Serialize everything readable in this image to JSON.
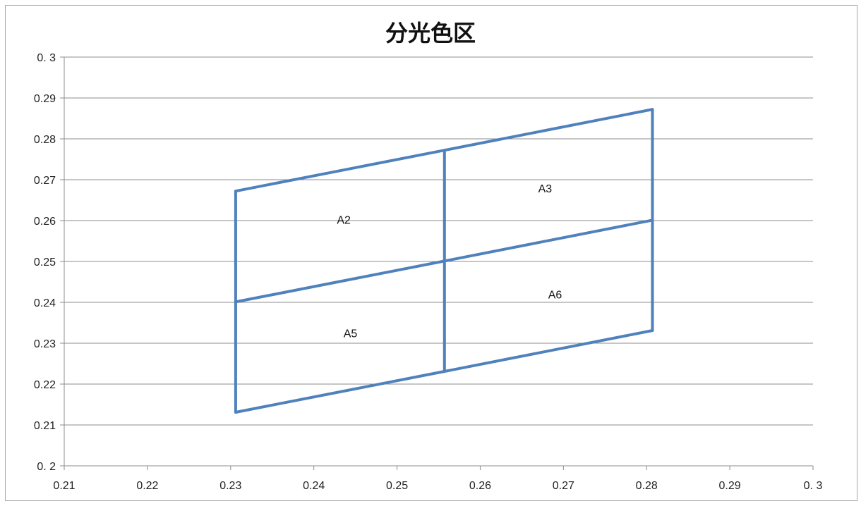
{
  "chart_data": {
    "type": "line",
    "title": "分光色区",
    "xlabel": "",
    "ylabel": "",
    "xlim": [
      0.21,
      0.3
    ],
    "ylim": [
      0.2,
      0.3
    ],
    "x_ticks": [
      0.21,
      0.22,
      0.23,
      0.24,
      0.25,
      0.26,
      0.27,
      0.28,
      0.29,
      0.3
    ],
    "y_ticks": [
      0.2,
      0.21,
      0.22,
      0.23,
      0.24,
      0.25,
      0.26,
      0.27,
      0.28,
      0.29,
      0.3
    ],
    "x_tick_labels": [
      "0.21",
      "0.22",
      "0.23",
      "0.24",
      "0.25",
      "0.26",
      "0.27",
      "0.28",
      "0.29",
      "0. 3"
    ],
    "y_tick_labels": [
      "0. 2",
      "0.21",
      "0.22",
      "0.23",
      "0.24",
      "0.25",
      "0.26",
      "0.27",
      "0.28",
      "0.29",
      "0. 3"
    ],
    "grid": "horizontal",
    "line_color": "#4f81bd",
    "series": [
      {
        "values": [
          [
            0.2306,
            0.2672
          ],
          [
            0.2557,
            0.2772
          ],
          [
            0.2807,
            0.2872
          ]
        ]
      },
      {
        "values": [
          [
            0.2306,
            0.2401
          ],
          [
            0.2557,
            0.2501
          ],
          [
            0.2807,
            0.2601
          ]
        ]
      },
      {
        "values": [
          [
            0.2306,
            0.2131
          ],
          [
            0.2557,
            0.2231
          ],
          [
            0.2807,
            0.2331
          ]
        ]
      },
      {
        "values": [
          [
            0.2306,
            0.2672
          ],
          [
            0.2306,
            0.2131
          ]
        ]
      },
      {
        "values": [
          [
            0.2557,
            0.2772
          ],
          [
            0.2557,
            0.2231
          ]
        ]
      },
      {
        "values": [
          [
            0.2807,
            0.2872
          ],
          [
            0.2807,
            0.2331
          ]
        ]
      }
    ],
    "annotations": [
      {
        "text": "A2",
        "x": 0.2436,
        "y": 0.2603
      },
      {
        "text": "A3",
        "x": 0.2678,
        "y": 0.2679
      },
      {
        "text": "A5",
        "x": 0.2444,
        "y": 0.2325
      },
      {
        "text": "A6",
        "x": 0.269,
        "y": 0.242
      }
    ]
  }
}
